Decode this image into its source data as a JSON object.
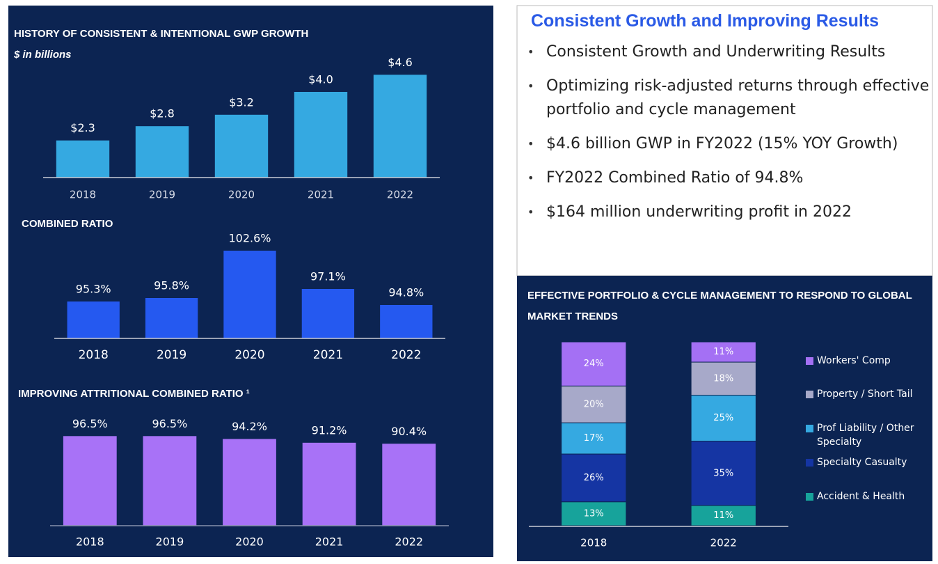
{
  "heading": "Consistent Growth and Improving Results",
  "bullets": [
    "Consistent Growth and Underwriting Results",
    "Optimizing risk-adjusted returns through effective portfolio and cycle management",
    "$4.6 billion GWP in FY2022  (15% YOY Growth)",
    "FY2022 Combined Ratio of 94.8%",
    "$164 million underwriting profit in 2022"
  ],
  "chart_data": [
    {
      "type": "bar",
      "title": "HISTORY OF CONSISTENT & INTENTIONAL GWP GROWTH",
      "subtitle": "$ in billions",
      "categories": [
        "2018",
        "2019",
        "2020",
        "2021",
        "2022"
      ],
      "values": [
        2.3,
        2.8,
        3.2,
        4.0,
        4.6
      ],
      "value_labels": [
        "$2.3",
        "$2.8",
        "$3.2",
        "$4.0",
        "$4.6"
      ],
      "color": "#35a9e1",
      "ylim": [
        1,
        5
      ]
    },
    {
      "type": "bar",
      "title": "COMBINED RATIO",
      "categories": [
        "2018",
        "2019",
        "2020",
        "2021",
        "2022"
      ],
      "values": [
        95.3,
        95.8,
        102.6,
        97.1,
        94.8
      ],
      "value_labels": [
        "95.3%",
        "95.8%",
        "102.6%",
        "97.1%",
        "94.8%"
      ],
      "color": "#2559f0",
      "ylim": [
        90,
        105
      ]
    },
    {
      "type": "bar",
      "title": "IMPROVING ATTRITIONAL COMBINED RATIO ¹",
      "categories": [
        "2018",
        "2019",
        "2020",
        "2021",
        "2022"
      ],
      "values": [
        96.5,
        96.5,
        94.2,
        91.2,
        90.4
      ],
      "value_labels": [
        "96.5%",
        "96.5%",
        "94.2%",
        "91.2%",
        "90.4%"
      ],
      "color": "#a872f7",
      "ylim": [
        25,
        100
      ]
    },
    {
      "type": "stacked_bar",
      "title": "EFFECTIVE PORTFOLIO & CYCLE MANAGEMENT TO RESPOND TO GLOBAL MARKET TRENDS",
      "categories": [
        "2018",
        "2022"
      ],
      "ylim": [
        0,
        100
      ],
      "series": [
        {
          "name": "Accident & Health",
          "color": "#17a39b",
          "values": [
            13,
            11
          ],
          "value_labels": [
            "13%",
            "11%"
          ]
        },
        {
          "name": "Specialty Casualty",
          "color": "#1535a3",
          "values": [
            26,
            35
          ],
          "value_labels": [
            "26%",
            "35%"
          ]
        },
        {
          "name": "Prof Liability / Other Specialty",
          "color": "#35a9e1",
          "values": [
            17,
            25
          ],
          "value_labels": [
            "17%",
            "25%"
          ]
        },
        {
          "name": "Property / Short Tail",
          "color": "#a7a9c9",
          "values": [
            20,
            18
          ],
          "value_labels": [
            "20%",
            "18%"
          ]
        },
        {
          "name": "Workers' Comp",
          "color": "#a470f4",
          "values": [
            24,
            11
          ],
          "value_labels": [
            "24%",
            "11%"
          ]
        }
      ]
    }
  ]
}
